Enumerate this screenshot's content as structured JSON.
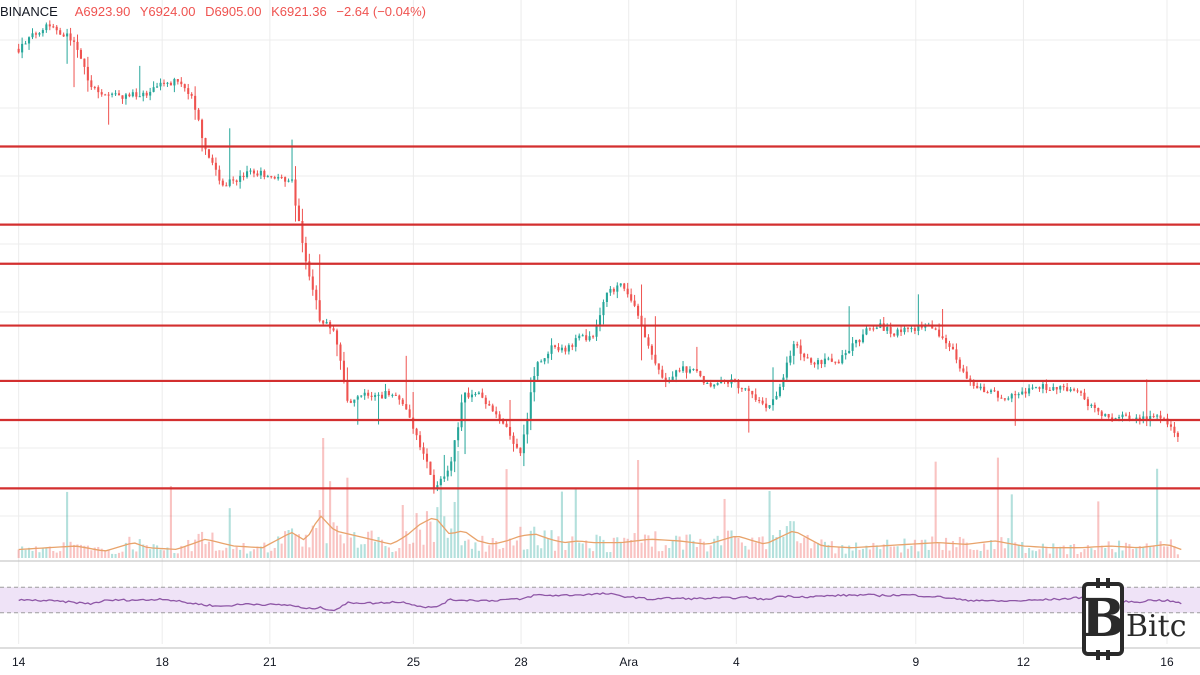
{
  "header": {
    "exchange": "BINANCE",
    "open": "A6923.90",
    "high": "Y6924.00",
    "low": "D6905.00",
    "close": "K6921.36",
    "change": "−2.64 (−0.04%)"
  },
  "logo": {
    "text": "Bitc",
    "letter": "B"
  },
  "colors": {
    "up": "#26a69a",
    "down": "#ef5350",
    "level": "#d32f2f",
    "rsi": "#8e56a6",
    "rsi_band": "#efe3f7",
    "volume_ma": "#e8a36b",
    "grid": "#ececec"
  },
  "chart_data": {
    "type": "candlestick",
    "price": [
      [
        0,
        8100
      ],
      [
        2,
        8180
      ],
      [
        4,
        8120
      ],
      [
        5,
        7990
      ],
      [
        6,
        7960
      ],
      [
        7,
        7955
      ],
      [
        9,
        7960
      ],
      [
        10,
        7990
      ],
      [
        11,
        8000
      ],
      [
        12,
        7960
      ],
      [
        13,
        7800
      ],
      [
        14,
        7690
      ],
      [
        15,
        7690
      ],
      [
        16,
        7720
      ],
      [
        17,
        7715
      ],
      [
        18,
        7705
      ],
      [
        19,
        7700
      ],
      [
        20,
        7450
      ],
      [
        21,
        7270
      ],
      [
        22,
        7230
      ],
      [
        23,
        7000
      ],
      [
        24,
        7040
      ],
      [
        25,
        7030
      ],
      [
        26,
        7050
      ],
      [
        27,
        6990
      ],
      [
        28,
        6880
      ],
      [
        29,
        6750
      ],
      [
        30,
        6800
      ],
      [
        31,
        7040
      ],
      [
        32,
        7040
      ],
      [
        33,
        6985
      ],
      [
        34,
        6930
      ],
      [
        35,
        6860
      ],
      [
        36,
        7120
      ],
      [
        37,
        7180
      ],
      [
        38,
        7170
      ],
      [
        39,
        7210
      ],
      [
        40,
        7210
      ],
      [
        41,
        7350
      ],
      [
        42,
        7370
      ],
      [
        43,
        7310
      ],
      [
        44,
        7160
      ],
      [
        45,
        7070
      ],
      [
        46,
        7120
      ],
      [
        47,
        7110
      ],
      [
        48,
        7070
      ],
      [
        49,
        7085
      ],
      [
        50,
        7070
      ],
      [
        51,
        7050
      ],
      [
        52,
        6990
      ],
      [
        53,
        7050
      ],
      [
        54,
        7200
      ],
      [
        55,
        7140
      ],
      [
        56,
        7140
      ],
      [
        57,
        7140
      ],
      [
        58,
        7180
      ],
      [
        59,
        7230
      ],
      [
        60,
        7250
      ],
      [
        61,
        7230
      ],
      [
        62,
        7240
      ],
      [
        63,
        7250
      ],
      [
        64,
        7230
      ],
      [
        65,
        7180
      ],
      [
        66,
        7080
      ],
      [
        67,
        7060
      ],
      [
        68,
        7040
      ],
      [
        69,
        7030
      ],
      [
        70,
        7040
      ],
      [
        71,
        7060
      ],
      [
        72,
        7060
      ],
      [
        73,
        7060
      ],
      [
        74,
        7040
      ],
      [
        75,
        6985
      ],
      [
        76,
        6970
      ],
      [
        77,
        6975
      ],
      [
        78,
        6960
      ],
      [
        79,
        6970
      ],
      [
        80,
        6950
      ],
      [
        80.5,
        6930
      ],
      [
        80.9,
        6890
      ]
    ],
    "volume": [
      [
        0,
        0.5
      ],
      [
        2,
        0.6
      ],
      [
        4,
        0.7
      ],
      [
        6,
        0.4
      ],
      [
        8,
        0.9
      ],
      [
        9,
        0.6
      ],
      [
        11,
        0.5
      ],
      [
        13,
        1.1
      ],
      [
        15,
        0.7
      ],
      [
        17,
        0.6
      ],
      [
        19,
        1.5
      ],
      [
        20,
        1.0
      ],
      [
        21,
        2.5
      ],
      [
        22,
        1.6
      ],
      [
        24,
        1.2
      ],
      [
        26,
        0.8
      ],
      [
        27,
        1.3
      ],
      [
        28,
        2.0
      ],
      [
        29,
        2.4
      ],
      [
        30,
        1.4
      ],
      [
        31,
        1.6
      ],
      [
        32,
        1.0
      ],
      [
        33,
        0.8
      ],
      [
        34,
        1.0
      ],
      [
        35,
        1.3
      ],
      [
        36,
        1.4
      ],
      [
        37,
        1.1
      ],
      [
        38,
        0.9
      ],
      [
        39,
        1.0
      ],
      [
        40,
        0.9
      ],
      [
        42,
        0.9
      ],
      [
        44,
        1.1
      ],
      [
        46,
        1.0
      ],
      [
        48,
        0.8
      ],
      [
        50,
        1.3
      ],
      [
        52,
        0.8
      ],
      [
        54,
        1.6
      ],
      [
        56,
        0.7
      ],
      [
        58,
        0.6
      ],
      [
        60,
        0.7
      ],
      [
        62,
        0.8
      ],
      [
        64,
        0.9
      ],
      [
        66,
        0.8
      ],
      [
        68,
        1.0
      ],
      [
        70,
        0.7
      ],
      [
        72,
        0.6
      ],
      [
        74,
        0.6
      ],
      [
        76,
        0.7
      ],
      [
        78,
        0.6
      ],
      [
        80,
        0.8
      ],
      [
        81,
        0.5
      ]
    ],
    "rsi": [
      [
        0,
        50
      ],
      [
        2,
        49
      ],
      [
        4,
        46
      ],
      [
        5,
        44
      ],
      [
        6,
        49
      ],
      [
        7,
        50
      ],
      [
        9,
        50
      ],
      [
        10,
        52
      ],
      [
        12,
        45
      ],
      [
        14,
        40
      ],
      [
        16,
        44
      ],
      [
        17,
        43
      ],
      [
        19,
        42
      ],
      [
        20,
        36
      ],
      [
        21,
        38
      ],
      [
        22,
        34
      ],
      [
        23,
        46
      ],
      [
        25,
        45
      ],
      [
        26,
        47
      ],
      [
        27,
        46
      ],
      [
        28,
        40
      ],
      [
        29,
        38
      ],
      [
        30,
        50
      ],
      [
        31,
        50
      ],
      [
        33,
        49
      ],
      [
        34,
        51
      ],
      [
        35,
        51
      ],
      [
        36,
        58
      ],
      [
        37,
        57
      ],
      [
        39,
        58
      ],
      [
        40,
        59
      ],
      [
        41,
        60
      ],
      [
        42,
        56
      ],
      [
        43,
        54
      ],
      [
        44,
        51
      ],
      [
        45,
        53
      ],
      [
        47,
        52
      ],
      [
        49,
        53
      ],
      [
        51,
        54
      ],
      [
        52,
        50
      ],
      [
        53,
        56
      ],
      [
        55,
        55
      ],
      [
        57,
        57
      ],
      [
        59,
        58
      ],
      [
        60,
        57
      ],
      [
        62,
        58
      ],
      [
        64,
        55
      ],
      [
        65,
        53
      ],
      [
        66,
        49
      ],
      [
        67,
        50
      ],
      [
        68,
        48
      ],
      [
        70,
        49
      ],
      [
        72,
        51
      ],
      [
        73,
        52
      ],
      [
        74,
        54
      ],
      [
        75,
        46
      ],
      [
        76,
        48
      ],
      [
        78,
        47
      ],
      [
        79,
        50
      ],
      [
        80,
        49
      ],
      [
        81,
        45
      ]
    ],
    "support_resistance_levels": [
      7800,
      7560,
      7440,
      7250,
      7080,
      6960,
      6750
    ],
    "ylim": [
      6530,
      8250
    ],
    "rsi_range": [
      0,
      100
    ],
    "rsi_band": [
      30,
      70
    ],
    "xlim": [
      -1.3,
      82.3
    ],
    "x_ticks": [
      {
        "x": 0,
        "label": "14"
      },
      {
        "x": 10,
        "label": "18"
      },
      {
        "x": 17.5,
        "label": "21"
      },
      {
        "x": 27.5,
        "label": "25"
      },
      {
        "x": 35,
        "label": "28"
      },
      {
        "x": 42.5,
        "label": "Ara"
      },
      {
        "x": 50,
        "label": "4"
      },
      {
        "x": 62.5,
        "label": "9"
      },
      {
        "x": 70,
        "label": "12"
      },
      {
        "x": 80,
        "label": "16"
      }
    ],
    "grid": true,
    "legend": "none"
  }
}
